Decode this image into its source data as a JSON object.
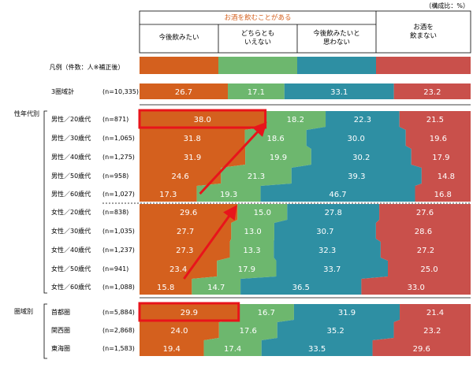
{
  "note": "（構成比：%）",
  "header": {
    "group_label": "お酒を飲むことがある",
    "columns": [
      "今後飲みたい",
      "どちらとも\nいえない",
      "今後飲みたいと\n思わない",
      "お酒を\n飲まない"
    ]
  },
  "legend_label": "凡例（件数：人※補正後）",
  "colors": {
    "want": "#D4601E",
    "neutral": "#6DB76E",
    "notwant": "#2E8FA3",
    "none": "#C9504B",
    "highlight": "#E8141B"
  },
  "sections": [
    {
      "label": "",
      "rows": [
        {
          "name": "3圏域計",
          "n": "(n=10,335)"
        }
      ]
    },
    {
      "label": "性年代別",
      "rows": [
        {
          "name": "男性／20歳代",
          "n": "(n=871)"
        },
        {
          "name": "男性／30歳代",
          "n": "(n=1,065)"
        },
        {
          "name": "男性／40歳代",
          "n": "(n=1,275)"
        },
        {
          "name": "男性／50歳代",
          "n": "(n=958)"
        },
        {
          "name": "男性／60歳代",
          "n": "(n=1,027)"
        },
        {
          "name": "女性／20歳代",
          "n": "(n=838)"
        },
        {
          "name": "女性／30歳代",
          "n": "(n=1,035)"
        },
        {
          "name": "女性／40歳代",
          "n": "(n=1,237)"
        },
        {
          "name": "女性／50歳代",
          "n": "(n=941)"
        },
        {
          "name": "女性／60歳代",
          "n": "(n=1,088)"
        }
      ]
    },
    {
      "label": "圏域別",
      "rows": [
        {
          "name": "首都圏",
          "n": "(n=5,884)"
        },
        {
          "name": "関西圏",
          "n": "(n=2,868)"
        },
        {
          "name": "東海圏",
          "n": "(n=1,583)"
        }
      ]
    }
  ],
  "chart_data": {
    "type": "bar",
    "orientation": "horizontal",
    "stacked": true,
    "unit": "%",
    "title": "",
    "categories": [
      "3圏域計",
      "男性／20歳代",
      "男性／30歳代",
      "男性／40歳代",
      "男性／50歳代",
      "男性／60歳代",
      "女性／20歳代",
      "女性／30歳代",
      "女性／40歳代",
      "女性／50歳代",
      "女性／60歳代",
      "首都圏",
      "関西圏",
      "東海圏"
    ],
    "series": [
      {
        "name": "今後飲みたい",
        "values": [
          "26.7",
          "38.0",
          "31.8",
          "31.9",
          "24.6",
          "17.3",
          "29.6",
          "27.7",
          "27.3",
          "23.4",
          "15.8",
          "29.9",
          "24.0",
          "19.4"
        ]
      },
      {
        "name": "どちらともいえない",
        "values": [
          "17.1",
          "18.2",
          "18.6",
          "19.9",
          "21.3",
          "19.3",
          "15.0",
          "13.0",
          "13.3",
          "17.9",
          "14.7",
          "16.7",
          "17.6",
          "17.4"
        ]
      },
      {
        "name": "今後飲みたいと思わない",
        "values": [
          "33.1",
          "22.3",
          "30.0",
          "30.2",
          "39.3",
          "46.7",
          "27.8",
          "30.7",
          "32.3",
          "33.7",
          "36.5",
          "31.9",
          "35.2",
          "33.5"
        ]
      },
      {
        "name": "お酒を飲まない",
        "values": [
          "23.2",
          "21.5",
          "19.6",
          "17.9",
          "14.8",
          "16.8",
          "27.6",
          "28.6",
          "27.2",
          "25.0",
          "33.0",
          "21.4",
          "23.2",
          "29.6"
        ]
      }
    ],
    "highlighted_values": [
      "男性／20歳代 今後飲みたい 38.0",
      "首都圏 今後飲みたい 29.9"
    ],
    "annotations": [
      "arrow: 女性／60歳代 → 女性／20歳代 (今後飲みたい 増加)",
      "arrow: 男性／60歳代 → 男性／20歳代 (今後飲みたい 増加)"
    ]
  }
}
